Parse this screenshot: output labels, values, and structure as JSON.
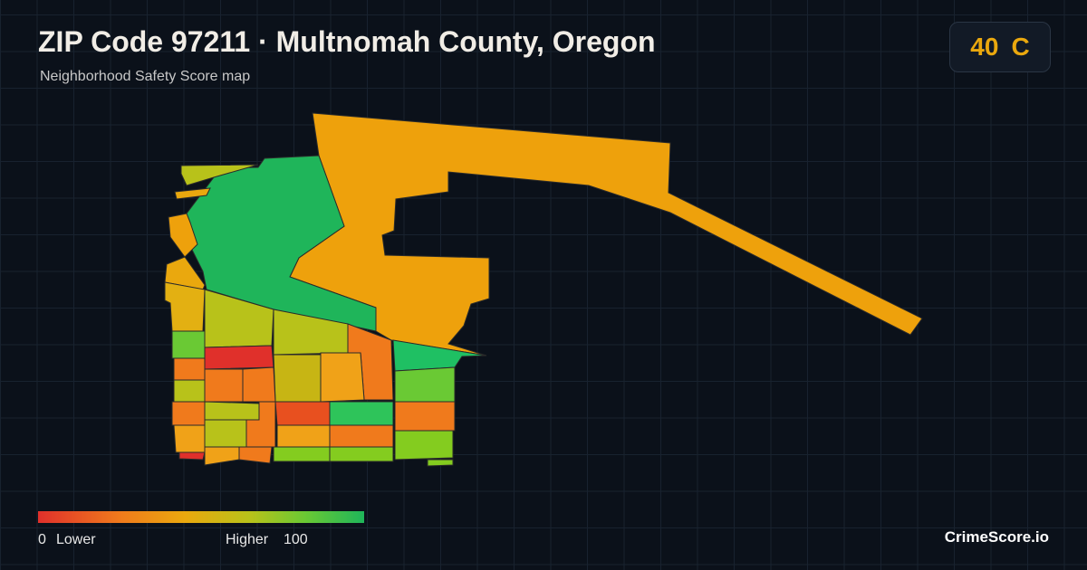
{
  "header": {
    "title": "ZIP Code 97211 · Multnomah County, Oregon",
    "subtitle": "Neighborhood Safety Score map"
  },
  "score": {
    "value": 40,
    "grade": "C"
  },
  "legend": {
    "min": 0,
    "min_label": "Lower",
    "max_label": "Higher",
    "max": 100
  },
  "footer": {
    "brand": "CrimeScore.io"
  }
}
